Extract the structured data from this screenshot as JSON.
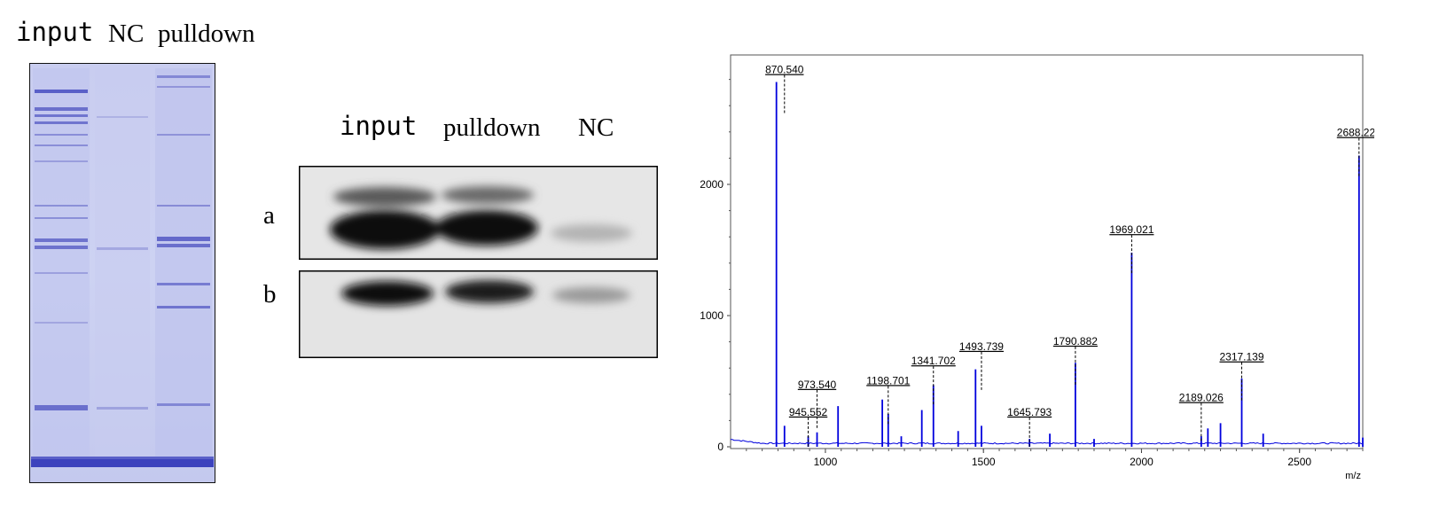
{
  "gel": {
    "lane_labels": [
      "input",
      "NC",
      "pulldown"
    ]
  },
  "western": {
    "lane_labels": [
      "input",
      "pulldown",
      "NC"
    ],
    "row_labels": [
      "a",
      "b"
    ]
  },
  "chart_data": {
    "type": "line",
    "title": "",
    "xlabel": "m/z",
    "ylabel": "",
    "xlim": [
      700,
      2700
    ],
    "ylim": [
      0,
      2900
    ],
    "x_ticks": [
      1000,
      1500,
      2000,
      2500
    ],
    "y_ticks": [
      0,
      1000,
      2000
    ],
    "grid": false,
    "series": [
      {
        "color": "#0000dd",
        "x": [
          845,
          870.54,
          945.552,
          973.54,
          1040,
          1180,
          1198.701,
          1240,
          1305,
          1341.702,
          1420,
          1475,
          1493.739,
          1645.793,
          1710,
          1790.882,
          1850,
          1969.021,
          2189.026,
          2210,
          2250,
          2317.139,
          2385,
          2688.223,
          2700
        ],
        "y": [
          2780,
          160,
          80,
          110,
          310,
          360,
          250,
          80,
          280,
          470,
          120,
          590,
          160,
          60,
          100,
          640,
          60,
          1480,
          80,
          140,
          180,
          520,
          100,
          2220,
          70
        ]
      }
    ],
    "peak_labels": [
      {
        "x": 870.54,
        "y": 2780,
        "text": "870.540"
      },
      {
        "x": 973.54,
        "y": 380,
        "text": "973.540"
      },
      {
        "x": 945.552,
        "y": 170,
        "text": "945.552"
      },
      {
        "x": 1198.701,
        "y": 410,
        "text": "1198.701"
      },
      {
        "x": 1341.702,
        "y": 560,
        "text": "1341.702"
      },
      {
        "x": 1493.739,
        "y": 670,
        "text": "1493.739"
      },
      {
        "x": 1645.793,
        "y": 170,
        "text": "1645.793"
      },
      {
        "x": 1790.882,
        "y": 710,
        "text": "1790.882"
      },
      {
        "x": 1969.021,
        "y": 1560,
        "text": "1969.021"
      },
      {
        "x": 2189.026,
        "y": 280,
        "text": "2189.026"
      },
      {
        "x": 2317.139,
        "y": 590,
        "text": "2317.139"
      },
      {
        "x": 2688.223,
        "y": 2300,
        "text": "2688.223"
      }
    ]
  }
}
